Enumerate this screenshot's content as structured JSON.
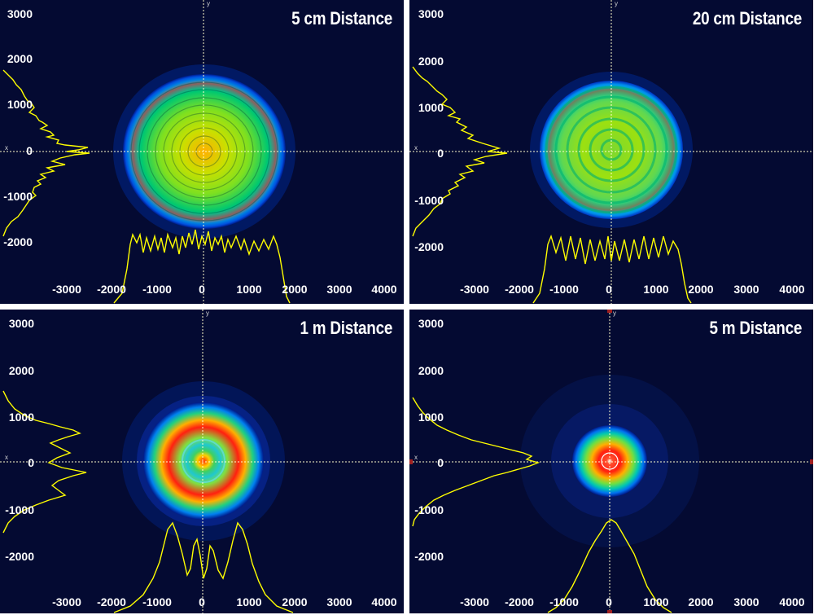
{
  "panels": [
    {
      "title": "5 cm Distance",
      "y_ticks": [
        "3000",
        "2000",
        "1000",
        "0",
        "-1000",
        "-2000"
      ],
      "x_ticks": [
        "-3000",
        "-2000",
        "-1000",
        "0",
        "1000",
        "2000",
        "3000",
        "4000"
      ],
      "beam": "large flat-top disc with fine concentric fringes",
      "profile": "flat-top with dense ripple"
    },
    {
      "title": "20 cm Distance",
      "y_ticks": [
        "3000",
        "2000",
        "1000",
        "0",
        "-1000",
        "-2000"
      ],
      "x_ticks": [
        "-3000",
        "-2000",
        "-1000",
        "0",
        "1000",
        "2000",
        "3000",
        "4000"
      ],
      "beam": "large disc with concentric rings",
      "profile": "flat-top with ring modulation"
    },
    {
      "title": "1 m Distance",
      "y_ticks": [
        "3000",
        "2000",
        "1000",
        "0",
        "-1000",
        "-2000"
      ],
      "x_ticks": [
        "-3000",
        "-2000",
        "-1000",
        "0",
        "1000",
        "2000",
        "3000",
        "4000"
      ],
      "beam": "medium ring pattern with hot outer ring",
      "profile": "multi-peak ring profile"
    },
    {
      "title": "5 m Distance",
      "y_ticks": [
        "3000",
        "2000",
        "1000",
        "0",
        "-1000",
        "-2000"
      ],
      "x_ticks": [
        "-3000",
        "-2000",
        "-1000",
        "0",
        "1000",
        "2000",
        "3000",
        "4000"
      ],
      "beam": "small gaussian-like spot",
      "profile": "single central peak"
    }
  ],
  "axis_letters": {
    "x": "x",
    "y": "y"
  },
  "colors": {
    "background": "#040a32",
    "profile": "#ffff00",
    "crosshair": "#ffffcc",
    "tick_text": "#ffffff",
    "separator": "#ffffff"
  }
}
